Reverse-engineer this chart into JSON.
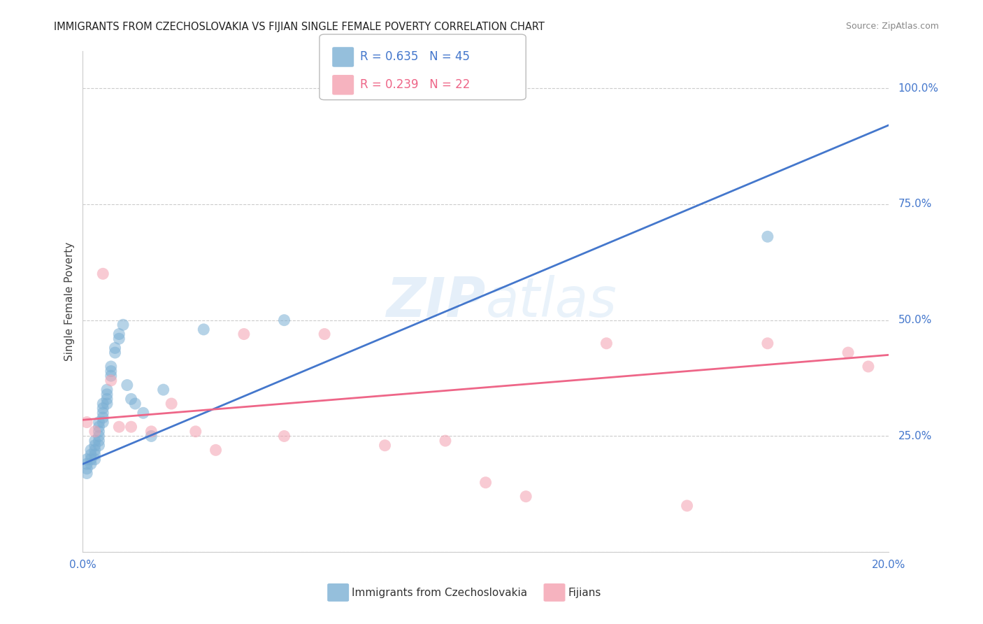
{
  "title": "IMMIGRANTS FROM CZECHOSLOVAKIA VS FIJIAN SINGLE FEMALE POVERTY CORRELATION CHART",
  "source": "Source: ZipAtlas.com",
  "ylabel": "Single Female Poverty",
  "y_ticks": [
    0.0,
    0.25,
    0.5,
    0.75,
    1.0
  ],
  "y_tick_labels": [
    "",
    "25.0%",
    "50.0%",
    "75.0%",
    "100.0%"
  ],
  "xlim": [
    0.0,
    0.2
  ],
  "ylim": [
    0.0,
    1.08
  ],
  "blue_R": 0.635,
  "blue_N": 45,
  "pink_R": 0.239,
  "pink_N": 22,
  "blue_color": "#7BAFD4",
  "pink_color": "#F4A0B0",
  "blue_line_color": "#4477CC",
  "pink_line_color": "#EE6688",
  "legend_label_blue": "Immigrants from Czechoslovakia",
  "legend_label_pink": "Fijians",
  "background_color": "#FFFFFF",
  "grid_color": "#CCCCCC",
  "watermark_line1": "ZIP",
  "watermark_line2": "atlas",
  "blue_scatter_x": [
    0.001,
    0.001,
    0.001,
    0.001,
    0.002,
    0.002,
    0.002,
    0.002,
    0.003,
    0.003,
    0.003,
    0.003,
    0.003,
    0.004,
    0.004,
    0.004,
    0.004,
    0.004,
    0.004,
    0.005,
    0.005,
    0.005,
    0.005,
    0.005,
    0.006,
    0.006,
    0.006,
    0.006,
    0.007,
    0.007,
    0.007,
    0.008,
    0.008,
    0.009,
    0.009,
    0.01,
    0.011,
    0.012,
    0.013,
    0.015,
    0.017,
    0.02,
    0.03,
    0.05,
    0.17
  ],
  "blue_scatter_y": [
    0.2,
    0.19,
    0.18,
    0.17,
    0.22,
    0.21,
    0.2,
    0.19,
    0.24,
    0.23,
    0.22,
    0.21,
    0.2,
    0.28,
    0.27,
    0.26,
    0.25,
    0.24,
    0.23,
    0.32,
    0.31,
    0.3,
    0.29,
    0.28,
    0.35,
    0.34,
    0.33,
    0.32,
    0.4,
    0.39,
    0.38,
    0.44,
    0.43,
    0.47,
    0.46,
    0.49,
    0.36,
    0.33,
    0.32,
    0.3,
    0.25,
    0.35,
    0.48,
    0.5,
    0.68
  ],
  "pink_scatter_x": [
    0.001,
    0.003,
    0.005,
    0.007,
    0.009,
    0.012,
    0.017,
    0.022,
    0.028,
    0.033,
    0.04,
    0.05,
    0.06,
    0.075,
    0.09,
    0.1,
    0.11,
    0.13,
    0.15,
    0.17,
    0.19,
    0.195
  ],
  "pink_scatter_y": [
    0.28,
    0.26,
    0.6,
    0.37,
    0.27,
    0.27,
    0.26,
    0.32,
    0.26,
    0.22,
    0.47,
    0.25,
    0.47,
    0.23,
    0.24,
    0.15,
    0.12,
    0.45,
    0.1,
    0.45,
    0.43,
    0.4
  ],
  "blue_line_x": [
    0.0,
    0.2
  ],
  "blue_line_y": [
    0.19,
    0.92
  ],
  "pink_line_x": [
    0.0,
    0.2
  ],
  "pink_line_y": [
    0.285,
    0.425
  ]
}
